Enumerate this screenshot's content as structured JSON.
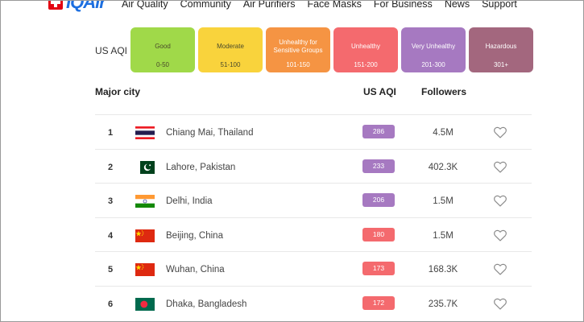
{
  "brand": {
    "name": "IQAir"
  },
  "nav": {
    "items": [
      "Air Quality",
      "Community",
      "Air Purifiers",
      "Face Masks",
      "For Business",
      "News",
      "Support"
    ]
  },
  "legend": {
    "label": "US AQI",
    "levels": [
      {
        "name": "Good",
        "range": "0-50",
        "color": "#a0d949",
        "text": "dark"
      },
      {
        "name": "Moderate",
        "range": "51-100",
        "color": "#f9d33c",
        "text": "dark"
      },
      {
        "name": "Unhealthy for Sensitive Groups",
        "range": "101-150",
        "color": "#f59443",
        "text": "light"
      },
      {
        "name": "Unhealthy",
        "range": "151-200",
        "color": "#f46a6e",
        "text": "light"
      },
      {
        "name": "Very Unhealthy",
        "range": "201-300",
        "color": "#a679c1",
        "text": "light"
      },
      {
        "name": "Hazardous",
        "range": "301+",
        "color": "#a3677e",
        "text": "light"
      }
    ]
  },
  "table": {
    "headers": {
      "city": "Major city",
      "aqi": "US AQI",
      "followers": "Followers"
    },
    "rows": [
      {
        "rank": "1",
        "city": "Chiang Mai, Thailand",
        "flag": "thailand",
        "aqi": "286",
        "aqi_color": "#a679c1",
        "followers": "4.5M"
      },
      {
        "rank": "2",
        "city": "Lahore, Pakistan",
        "flag": "pakistan",
        "aqi": "233",
        "aqi_color": "#a679c1",
        "followers": "402.3K"
      },
      {
        "rank": "3",
        "city": "Delhi, India",
        "flag": "india",
        "aqi": "206",
        "aqi_color": "#a679c1",
        "followers": "1.5M"
      },
      {
        "rank": "4",
        "city": "Beijing, China",
        "flag": "china",
        "aqi": "180",
        "aqi_color": "#f46a6e",
        "followers": "1.5M"
      },
      {
        "rank": "5",
        "city": "Wuhan, China",
        "flag": "china",
        "aqi": "173",
        "aqi_color": "#f46a6e",
        "followers": "168.3K"
      },
      {
        "rank": "6",
        "city": "Dhaka, Bangladesh",
        "flag": "bangladesh",
        "aqi": "172",
        "aqi_color": "#f46a6e",
        "followers": "235.7K"
      }
    ]
  }
}
